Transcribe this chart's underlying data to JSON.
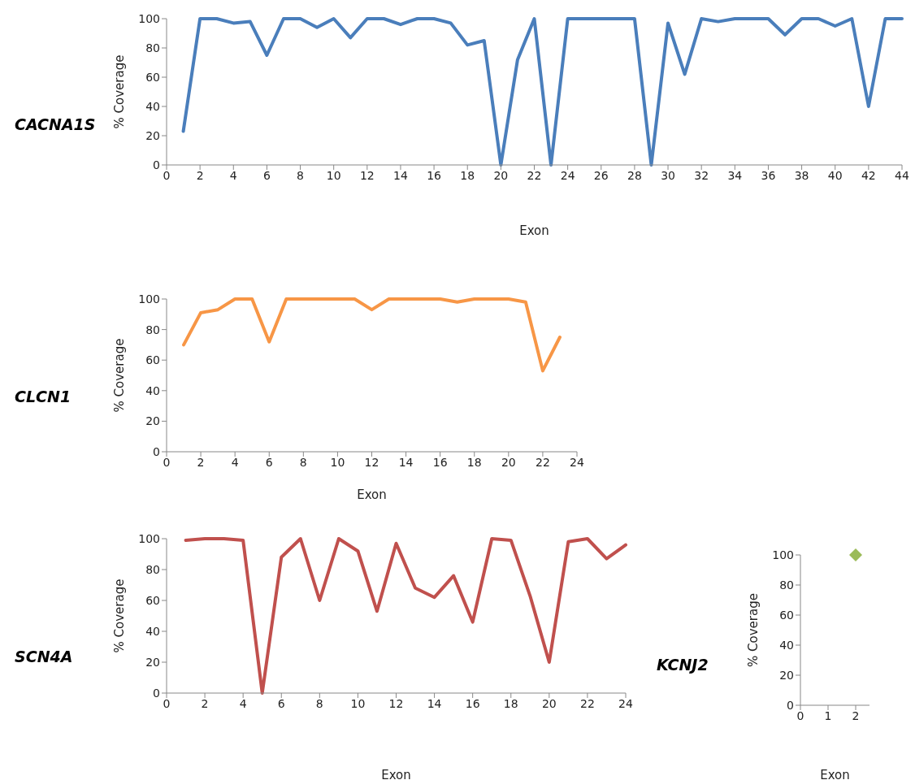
{
  "chart_data": [
    {
      "type": "line",
      "title": "CACNA1S",
      "xlabel": "Exon",
      "ylabel": "% Coverage",
      "color": "#4a7ebb",
      "x": [
        1,
        2,
        3,
        4,
        5,
        6,
        7,
        8,
        9,
        10,
        11,
        12,
        13,
        14,
        15,
        16,
        17,
        18,
        19,
        20,
        21,
        22,
        23,
        24,
        25,
        26,
        27,
        28,
        29,
        30,
        31,
        32,
        33,
        34,
        35,
        36,
        37,
        38,
        39,
        40,
        41,
        42,
        43,
        44
      ],
      "values": [
        23,
        100,
        100,
        97,
        98,
        75,
        100,
        100,
        94,
        100,
        87,
        100,
        100,
        96,
        100,
        100,
        97,
        82,
        85,
        0,
        72,
        100,
        0,
        100,
        100,
        100,
        100,
        100,
        0,
        97,
        62,
        100,
        98,
        100,
        100,
        100,
        89,
        100,
        100,
        95,
        100,
        40,
        100,
        100
      ],
      "xlim": [
        0,
        44
      ],
      "xticks": [
        0,
        2,
        4,
        6,
        8,
        10,
        12,
        14,
        16,
        18,
        20,
        22,
        24,
        26,
        28,
        30,
        32,
        34,
        36,
        38,
        40,
        42,
        44
      ],
      "ylim": [
        0,
        100
      ],
      "yticks": [
        0,
        20,
        40,
        60,
        80,
        100
      ]
    },
    {
      "type": "line",
      "title": "CLCN1",
      "xlabel": "Exon",
      "ylabel": "% Coverage",
      "color": "#f79646",
      "x": [
        1,
        2,
        3,
        4,
        5,
        6,
        7,
        8,
        9,
        10,
        11,
        12,
        13,
        14,
        15,
        16,
        17,
        18,
        19,
        20,
        21,
        22,
        23
      ],
      "values": [
        70,
        91,
        93,
        100,
        100,
        72,
        100,
        100,
        100,
        100,
        100,
        93,
        100,
        100,
        100,
        100,
        98,
        100,
        100,
        100,
        98,
        53,
        75
      ],
      "xlim": [
        0,
        24
      ],
      "xticks": [
        0,
        2,
        4,
        6,
        8,
        10,
        12,
        14,
        16,
        18,
        20,
        22,
        24
      ],
      "ylim": [
        0,
        100
      ],
      "yticks": [
        0,
        20,
        40,
        60,
        80,
        100
      ]
    },
    {
      "type": "line",
      "title": "SCN4A",
      "xlabel": "Exon",
      "ylabel": "% Coverage",
      "color": "#c0504d",
      "x": [
        1,
        2,
        3,
        4,
        5,
        6,
        7,
        8,
        9,
        10,
        11,
        12,
        13,
        14,
        15,
        16,
        17,
        18,
        19,
        20,
        21,
        22,
        23,
        24
      ],
      "values": [
        99,
        100,
        100,
        99,
        0,
        88,
        100,
        60,
        100,
        92,
        53,
        97,
        68,
        62,
        76,
        46,
        100,
        99,
        63,
        20,
        98,
        100,
        87,
        96
      ],
      "xlim": [
        0,
        24
      ],
      "xticks": [
        0,
        2,
        4,
        6,
        8,
        10,
        12,
        14,
        16,
        18,
        20,
        22,
        24
      ],
      "ylim": [
        0,
        100
      ],
      "yticks": [
        0,
        20,
        40,
        60,
        80,
        100
      ]
    },
    {
      "type": "scatter",
      "title": "KCNJ2",
      "xlabel": "Exon",
      "ylabel": "% Coverage",
      "color": "#9bbb59",
      "marker": "diamond",
      "x": [
        2
      ],
      "values": [
        100
      ],
      "xlim": [
        0,
        2.5
      ],
      "xticks": [
        0,
        1,
        2
      ],
      "ylim": [
        0,
        100
      ],
      "yticks": [
        0,
        20,
        40,
        60,
        80,
        100
      ]
    }
  ]
}
